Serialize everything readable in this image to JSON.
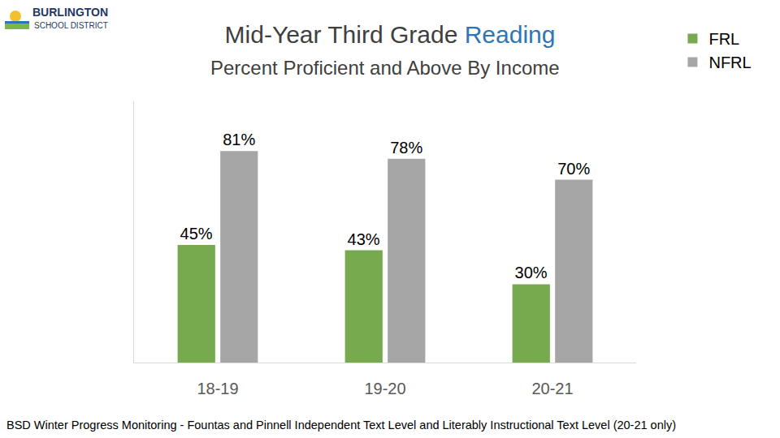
{
  "chart_data": {
    "type": "bar",
    "title": "Mid-Year Third Grade Reading",
    "subtitle": "Percent Proficient and Above By Income",
    "logo": [
      "BURLINGTON",
      "SCHOOL DISTRICT"
    ],
    "note": "BSD Winter Progress Monitoring - Fountas and Pinnell Independent Text Level and Literably Instructional Text Level (20-21 only)",
    "categories": [
      "18-19",
      "19-20",
      "20-21"
    ],
    "series": [
      {
        "name": "FRL",
        "color": "#77a94f",
        "values": [
          45,
          43,
          30
        ],
        "value_labels": [
          "45%",
          "43%",
          "30%"
        ]
      },
      {
        "name": "NFRL",
        "color": "#a6a6a6",
        "values": [
          81,
          78,
          70
        ],
        "value_labels": [
          "81%",
          "78%",
          "70%"
        ]
      }
    ],
    "ylim": [
      0,
      100
    ],
    "grid": false,
    "legend": "top right",
    "data_labels": true,
    "tick_labels": "x"
  }
}
